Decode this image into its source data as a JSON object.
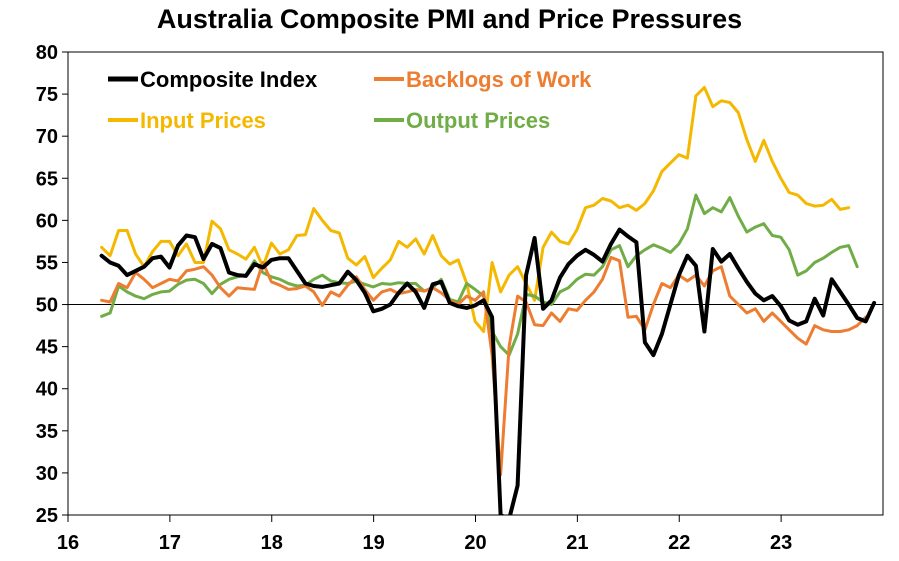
{
  "chart_data": {
    "type": "line",
    "title": "Australia Composite PMI and Price Pressures",
    "xlabel": "",
    "ylabel": "",
    "xlim": [
      16.0,
      24.0
    ],
    "ylim": [
      25,
      80
    ],
    "y_ticks": [
      25,
      30,
      35,
      40,
      45,
      50,
      55,
      60,
      65,
      70,
      75,
      80
    ],
    "x_ticks": [
      {
        "value": 16.0,
        "label": "16"
      },
      {
        "value": 17.0,
        "label": "17"
      },
      {
        "value": 18.0,
        "label": "18"
      },
      {
        "value": 19.0,
        "label": "19"
      },
      {
        "value": 20.0,
        "label": "20"
      },
      {
        "value": 21.0,
        "label": "21"
      },
      {
        "value": 22.0,
        "label": "22"
      },
      {
        "value": 23.0,
        "label": "23"
      }
    ],
    "reference_line": 50,
    "grid": false,
    "legend_position": "top-left",
    "series": [
      {
        "name": "Composite Index",
        "color": "#000000",
        "width": 4,
        "x_start": 16.33,
        "x_step": 0.08333,
        "values": [
          55.8,
          55.0,
          54.6,
          53.5,
          54.0,
          54.5,
          55.5,
          55.7,
          54.4,
          57.0,
          58.2,
          58.0,
          55.4,
          57.2,
          56.7,
          53.8,
          53.5,
          53.4,
          54.8,
          54.4,
          55.3,
          55.5,
          55.5,
          54.0,
          52.5,
          52.2,
          52.1,
          52.3,
          52.5,
          53.9,
          52.9,
          51.4,
          49.2,
          49.5,
          50.0,
          51.4,
          52.5,
          51.5,
          49.6,
          52.4,
          52.7,
          50.2,
          49.8,
          49.6,
          49.9,
          50.5,
          48.5,
          25.0,
          24.5,
          28.5,
          53.5,
          57.9,
          49.5,
          50.5,
          53.2,
          54.8,
          55.8,
          56.5,
          55.9,
          55.1,
          57.2,
          58.9,
          58.1,
          57.4,
          45.5,
          44.0,
          46.5,
          50.0,
          53.5,
          55.8,
          54.6,
          46.8,
          56.6,
          55.1,
          56.0,
          54.3,
          52.7,
          51.3,
          50.5,
          51.0,
          49.8,
          48.1,
          47.6,
          48.0,
          50.7,
          48.7,
          53.0,
          51.5,
          50.0,
          48.4,
          48.0,
          50.2
        ]
      },
      {
        "name": "Backlogs of Work",
        "color": "#ED7D31",
        "width": 3,
        "x_start": 16.33,
        "x_step": 0.08333,
        "values": [
          50.5,
          50.3,
          52.5,
          52.0,
          53.8,
          53.0,
          52.0,
          52.5,
          53.0,
          52.8,
          54.0,
          54.2,
          54.5,
          53.5,
          52.0,
          51.0,
          52.0,
          51.9,
          51.8,
          55.0,
          52.7,
          52.3,
          51.8,
          51.9,
          52.2,
          51.5,
          49.9,
          51.5,
          51.0,
          52.3,
          53.3,
          51.8,
          50.5,
          51.5,
          51.8,
          51.3,
          51.5,
          51.8,
          51.6,
          52.0,
          51.4,
          50.5,
          50.0,
          51.0,
          50.5,
          51.5,
          44.0,
          29.8,
          45.0,
          51.0,
          50.3,
          47.6,
          47.5,
          49.0,
          48.0,
          49.5,
          49.3,
          50.5,
          51.5,
          53.0,
          55.6,
          55.2,
          48.5,
          48.6,
          47.0,
          50.0,
          52.5,
          52.0,
          53.5,
          52.8,
          53.5,
          52.2,
          54.0,
          54.5,
          51.0,
          50.0,
          49.0,
          49.5,
          48.0,
          49.0,
          48.0,
          47.0,
          46.0,
          45.3,
          47.5,
          47.0,
          46.8,
          46.8,
          47.0,
          47.5,
          48.5
        ]
      },
      {
        "name": "Input Prices",
        "color": "#F5B800",
        "width": 3,
        "x_start": 16.33,
        "x_step": 0.08333,
        "values": [
          56.8,
          55.8,
          58.8,
          58.8,
          56.0,
          54.5,
          56.3,
          57.5,
          57.5,
          55.8,
          57.2,
          55.0,
          55.0,
          59.9,
          59.0,
          56.5,
          56.0,
          55.4,
          56.8,
          54.5,
          57.3,
          56.0,
          56.5,
          58.2,
          58.3,
          61.4,
          60.0,
          58.8,
          58.5,
          55.5,
          54.7,
          55.7,
          53.2,
          54.3,
          55.3,
          57.5,
          56.8,
          57.8,
          56.0,
          58.2,
          55.8,
          54.8,
          55.3,
          52.5,
          48.0,
          46.8,
          55.0,
          51.5,
          53.5,
          54.5,
          52.5,
          50.5,
          56.8,
          58.6,
          57.5,
          57.2,
          58.9,
          61.5,
          61.8,
          62.6,
          62.3,
          61.5,
          61.8,
          61.2,
          62.0,
          63.5,
          65.8,
          66.8,
          67.8,
          67.4,
          74.8,
          75.8,
          73.5,
          74.2,
          74.0,
          72.8,
          69.6,
          67.0,
          69.5,
          67.0,
          65.0,
          63.3,
          63.0,
          62.0,
          61.7,
          61.8,
          62.5,
          61.3,
          61.5
        ]
      },
      {
        "name": "Output Prices",
        "color": "#70AD47",
        "width": 3,
        "x_start": 16.33,
        "x_step": 0.08333,
        "values": [
          48.6,
          49.0,
          52.2,
          51.5,
          51.0,
          50.7,
          51.2,
          51.5,
          51.6,
          52.4,
          52.9,
          53.0,
          52.5,
          51.3,
          52.4,
          53.0,
          53.3,
          53.5,
          55.2,
          53.8,
          53.3,
          53.0,
          52.5,
          52.2,
          52.3,
          53.0,
          53.5,
          52.8,
          52.6,
          52.5,
          52.8,
          52.4,
          52.1,
          52.5,
          52.4,
          52.6,
          52.5,
          52.5,
          51.6,
          52.0,
          53.0,
          50.6,
          50.3,
          52.5,
          51.8,
          51.0,
          46.8,
          45.0,
          44.0,
          46.5,
          51.2,
          51.0,
          50.3,
          50.0,
          51.5,
          52.0,
          53.0,
          53.6,
          53.5,
          54.5,
          56.5,
          57.0,
          54.5,
          55.8,
          56.5,
          57.1,
          56.7,
          56.2,
          57.2,
          59.0,
          63.0,
          60.8,
          61.5,
          61.0,
          62.7,
          60.5,
          58.6,
          59.2,
          59.6,
          58.2,
          58.0,
          56.5,
          53.5,
          54.0,
          55.0,
          55.5,
          56.2,
          56.8,
          57.0,
          54.5
        ]
      }
    ]
  }
}
